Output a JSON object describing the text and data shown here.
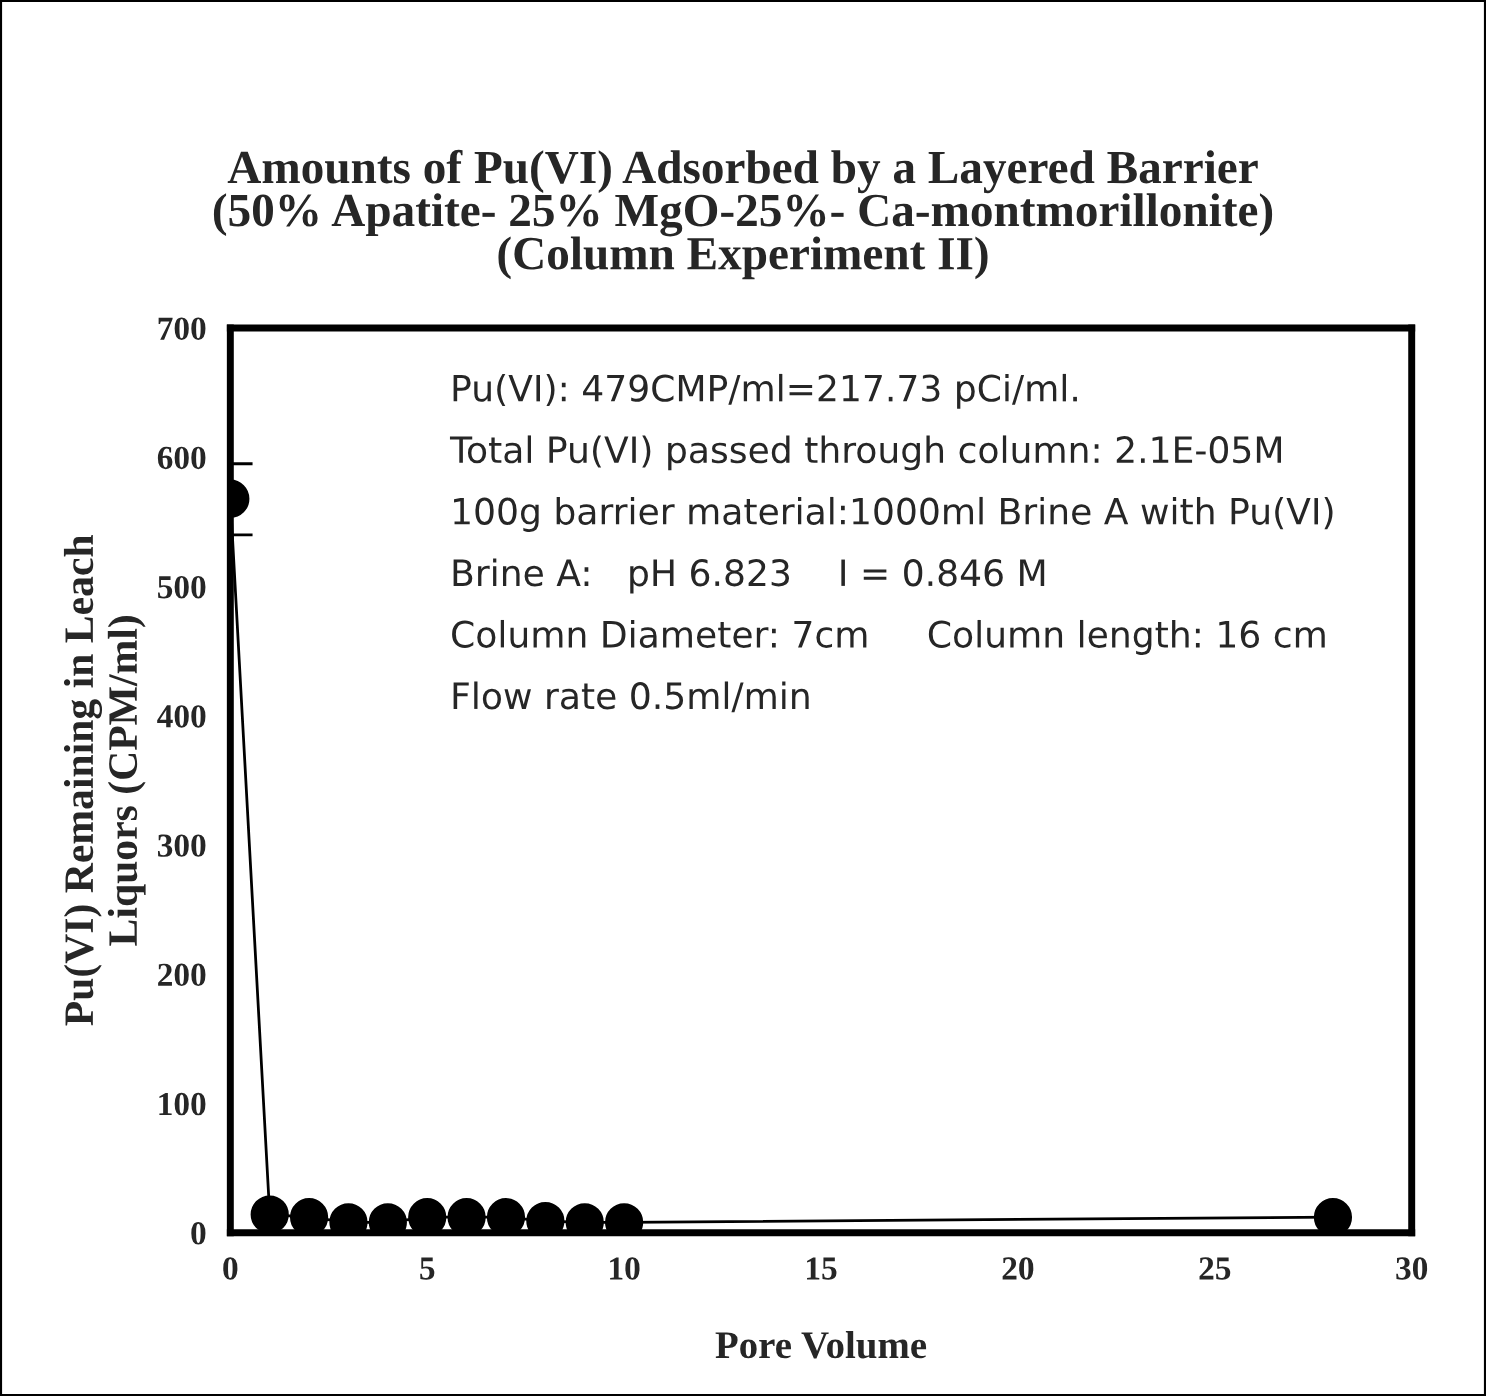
{
  "chart_data": {
    "type": "line",
    "title": "Amounts of Pu(VI) Adsorbed by a Layered Barrier\n(50% Apatite- 25% MgO-25%- Ca-montmorillonite)\n(Column Experiment II)",
    "xlabel": "Pore Volume",
    "ylabel": "Pu(VI) Remaining in Leach\nLiquors (CPM/ml)",
    "x": [
      0,
      1,
      2,
      3,
      4,
      5,
      6,
      7,
      8,
      9,
      10,
      28
    ],
    "series": [
      {
        "color": "#000000",
        "values": [
          568,
          14,
          12,
          8,
          8,
          12,
          12,
          12,
          9,
          8,
          8,
          12
        ],
        "errors": [
          [
            540,
            595
          ],
          null,
          null,
          null,
          null,
          null,
          null,
          null,
          null,
          null,
          null,
          null
        ]
      }
    ],
    "marker": "circle",
    "line_style": "solid",
    "grid": false,
    "legend": false,
    "xlim": [
      0,
      30
    ],
    "xticks": [
      0,
      5,
      10,
      15,
      20,
      25,
      30
    ],
    "ylim": [
      0,
      700
    ],
    "yticks": [
      0,
      100,
      200,
      300,
      400,
      500,
      600,
      700
    ],
    "annotations": [
      "Pu(VI): 479CMP/ml=217.73 pCi/ml.",
      "Total Pu(VI) passed through column: 2.1E-05M",
      "100g barrier material:1000ml Brine A with Pu(VI)",
      "Brine A:   pH 6.823    I = 0.846 M",
      "Column Diameter: 7cm     Column length: 16 cm",
      "Flow rate 0.5ml/min"
    ]
  }
}
